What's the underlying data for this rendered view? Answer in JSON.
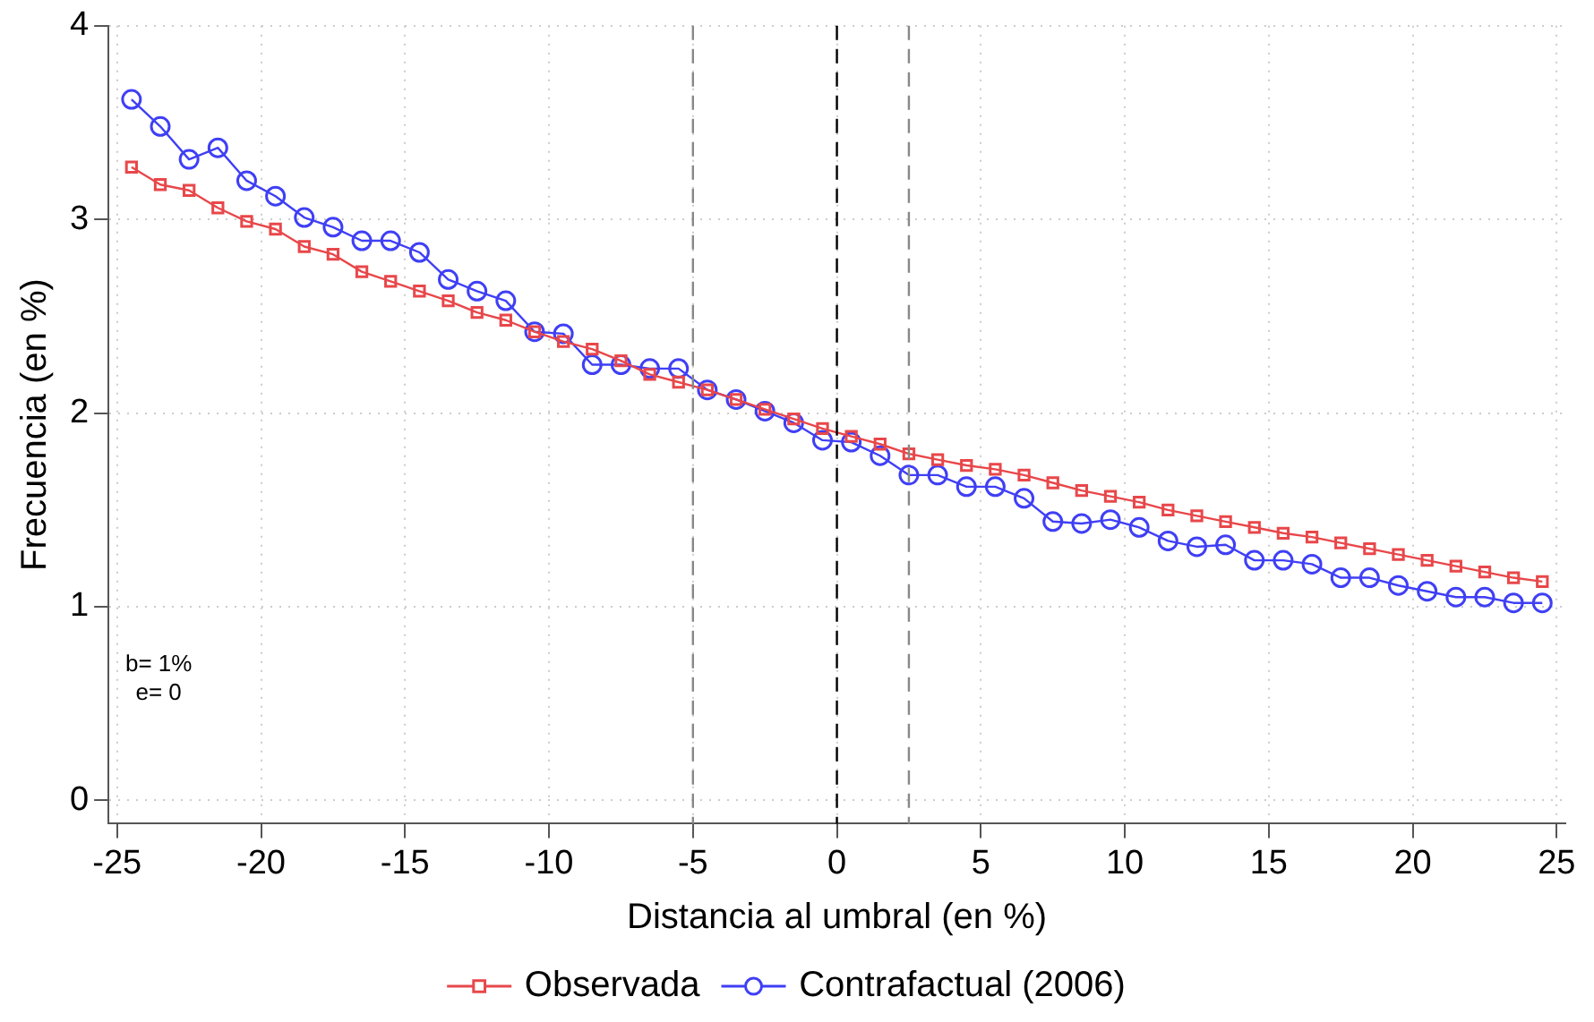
{
  "chart_data": {
    "type": "line",
    "xlabel": "Distancia al umbral (en %)",
    "ylabel": "Frecuencia (en %)",
    "x": [
      -24.5,
      -23.5,
      -22.5,
      -21.5,
      -20.5,
      -19.5,
      -18.5,
      -17.5,
      -16.5,
      -15.5,
      -14.5,
      -13.5,
      -12.5,
      -11.5,
      -10.5,
      -9.5,
      -8.5,
      -7.5,
      -6.5,
      -5.5,
      -4.5,
      -3.5,
      -2.5,
      -1.5,
      -0.5,
      0.5,
      1.5,
      2.5,
      3.5,
      4.5,
      5.5,
      6.5,
      7.5,
      8.5,
      9.5,
      10.5,
      11.5,
      12.5,
      13.5,
      14.5,
      15.5,
      16.5,
      17.5,
      18.5,
      19.5,
      20.5,
      21.5,
      22.5,
      23.5,
      24.5
    ],
    "series": [
      {
        "name": "Observada",
        "color": "#e8474a",
        "marker": "square",
        "values": [
          3.27,
          3.18,
          3.15,
          3.06,
          2.99,
          2.95,
          2.86,
          2.82,
          2.73,
          2.68,
          2.63,
          2.58,
          2.52,
          2.48,
          2.42,
          2.37,
          2.33,
          2.27,
          2.2,
          2.16,
          2.12,
          2.07,
          2.02,
          1.97,
          1.92,
          1.88,
          1.84,
          1.79,
          1.76,
          1.73,
          1.71,
          1.68,
          1.64,
          1.6,
          1.57,
          1.54,
          1.5,
          1.47,
          1.44,
          1.41,
          1.38,
          1.36,
          1.33,
          1.3,
          1.27,
          1.24,
          1.21,
          1.18,
          1.15,
          1.13
        ]
      },
      {
        "name": "Contrafactual (2006)",
        "color": "#3f3ff5",
        "marker": "circle",
        "values": [
          3.62,
          3.48,
          3.31,
          3.37,
          3.2,
          3.12,
          3.01,
          2.96,
          2.89,
          2.89,
          2.83,
          2.69,
          2.63,
          2.58,
          2.42,
          2.41,
          2.25,
          2.25,
          2.23,
          2.23,
          2.12,
          2.07,
          2.01,
          1.95,
          1.86,
          1.85,
          1.78,
          1.68,
          1.68,
          1.62,
          1.62,
          1.56,
          1.44,
          1.43,
          1.45,
          1.41,
          1.34,
          1.31,
          1.32,
          1.24,
          1.24,
          1.22,
          1.15,
          1.15,
          1.11,
          1.08,
          1.05,
          1.05,
          1.02,
          1.02
        ]
      }
    ],
    "xlim": [
      -25.3,
      25.3
    ],
    "xticks": [
      -25,
      -20,
      -15,
      -10,
      -5,
      0,
      5,
      10,
      15,
      20,
      25
    ],
    "ylim": [
      -0.12,
      4
    ],
    "yticks": [
      0,
      1,
      2,
      3,
      4
    ],
    "ref_lines": [
      {
        "axis": "x",
        "value": -5,
        "color": "#888888",
        "line_style": "dashed"
      },
      {
        "axis": "x",
        "value": 0,
        "color": "#000000",
        "line_style": "dashed"
      },
      {
        "axis": "x",
        "value": 2.5,
        "color": "#888888",
        "line_style": "dashed"
      }
    ],
    "annotations": [
      "b= 1%",
      "e= 0"
    ],
    "grid": true,
    "legend": "bottom",
    "line_style": "solid"
  }
}
